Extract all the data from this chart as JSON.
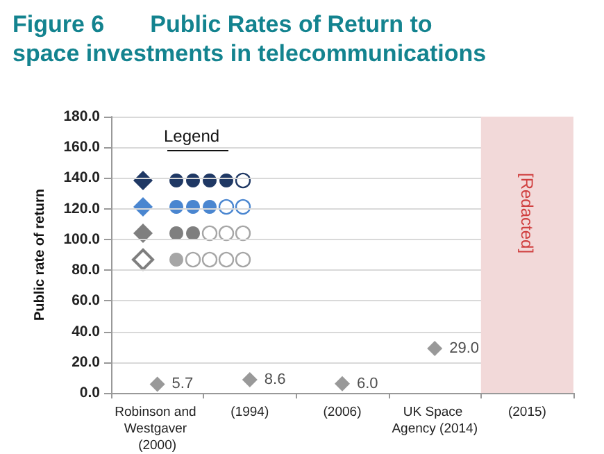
{
  "chart_data": {
    "type": "scatter",
    "title": "Figure 6       Public Rates of Return to space investments in telecommunications",
    "ylabel": "Public rate of return",
    "categories": [
      "Robinson and Westgaver (2000)",
      "(1994)",
      "(2006)",
      "UK Space Agency (2014)",
      "(2015)"
    ],
    "series": [
      {
        "color": "#7f7f7f",
        "values": [
          5.7,
          8.6,
          6.0,
          29.0,
          null
        ],
        "value_labels": [
          "5.7",
          "8.6",
          "6.0",
          "29.0",
          null
        ]
      }
    ],
    "ylim": [
      0,
      180
    ],
    "yticks": [
      {
        "value": 0,
        "label": "0.0"
      },
      {
        "value": 20,
        "label": "20.0"
      },
      {
        "value": 40,
        "label": "40.0"
      },
      {
        "value": 60,
        "label": "60.0"
      },
      {
        "value": 80,
        "label": "80.0"
      },
      {
        "value": 100,
        "label": "100.0"
      },
      {
        "value": 120,
        "label": "120.0"
      },
      {
        "value": 140,
        "label": "140.0"
      },
      {
        "value": 160,
        "label": "160.0"
      },
      {
        "value": 180,
        "label": "180.0"
      }
    ],
    "bands": [
      {
        "axis": "x",
        "from": "(2015)",
        "to": "(2015)",
        "label": "[Redacted]",
        "color": "#f2d9d9"
      }
    ],
    "annotations": [
      "Legend"
    ],
    "grid": "y",
    "marker": "diamond"
  }
}
